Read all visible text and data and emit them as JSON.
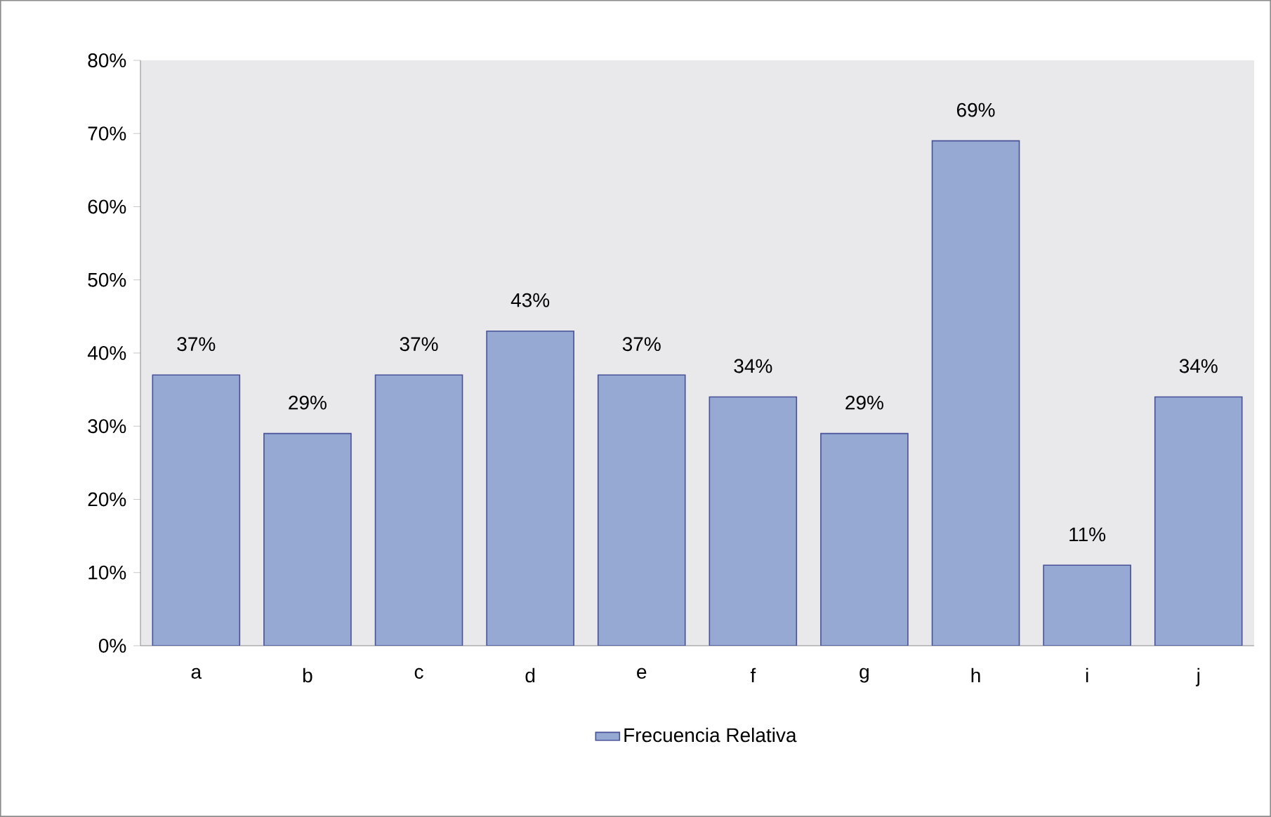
{
  "chart_data": {
    "type": "bar",
    "categories": [
      "a",
      "b",
      "c",
      "d",
      "e",
      "f",
      "g",
      "h",
      "i",
      "j"
    ],
    "series": [
      {
        "name": "Frecuencia Relativa",
        "color": "#95a9d3",
        "values": [
          37,
          29,
          37,
          43,
          37,
          34,
          29,
          69,
          11,
          34
        ],
        "value_labels": [
          "37%",
          "29%",
          "37%",
          "43%",
          "37%",
          "34%",
          "29%",
          "69%",
          "11%",
          "34%"
        ]
      }
    ],
    "ylim": [
      0,
      80
    ],
    "yticks": [
      {
        "value": 0,
        "label": "0%"
      },
      {
        "value": 10,
        "label": "10%"
      },
      {
        "value": 20,
        "label": "20%"
      },
      {
        "value": 30,
        "label": "30%"
      },
      {
        "value": 40,
        "label": "40%"
      },
      {
        "value": 50,
        "label": "50%"
      },
      {
        "value": 60,
        "label": "60%"
      },
      {
        "value": 70,
        "label": "70%"
      },
      {
        "value": 80,
        "label": "80%"
      }
    ],
    "grid": false,
    "legend": "bottom"
  }
}
